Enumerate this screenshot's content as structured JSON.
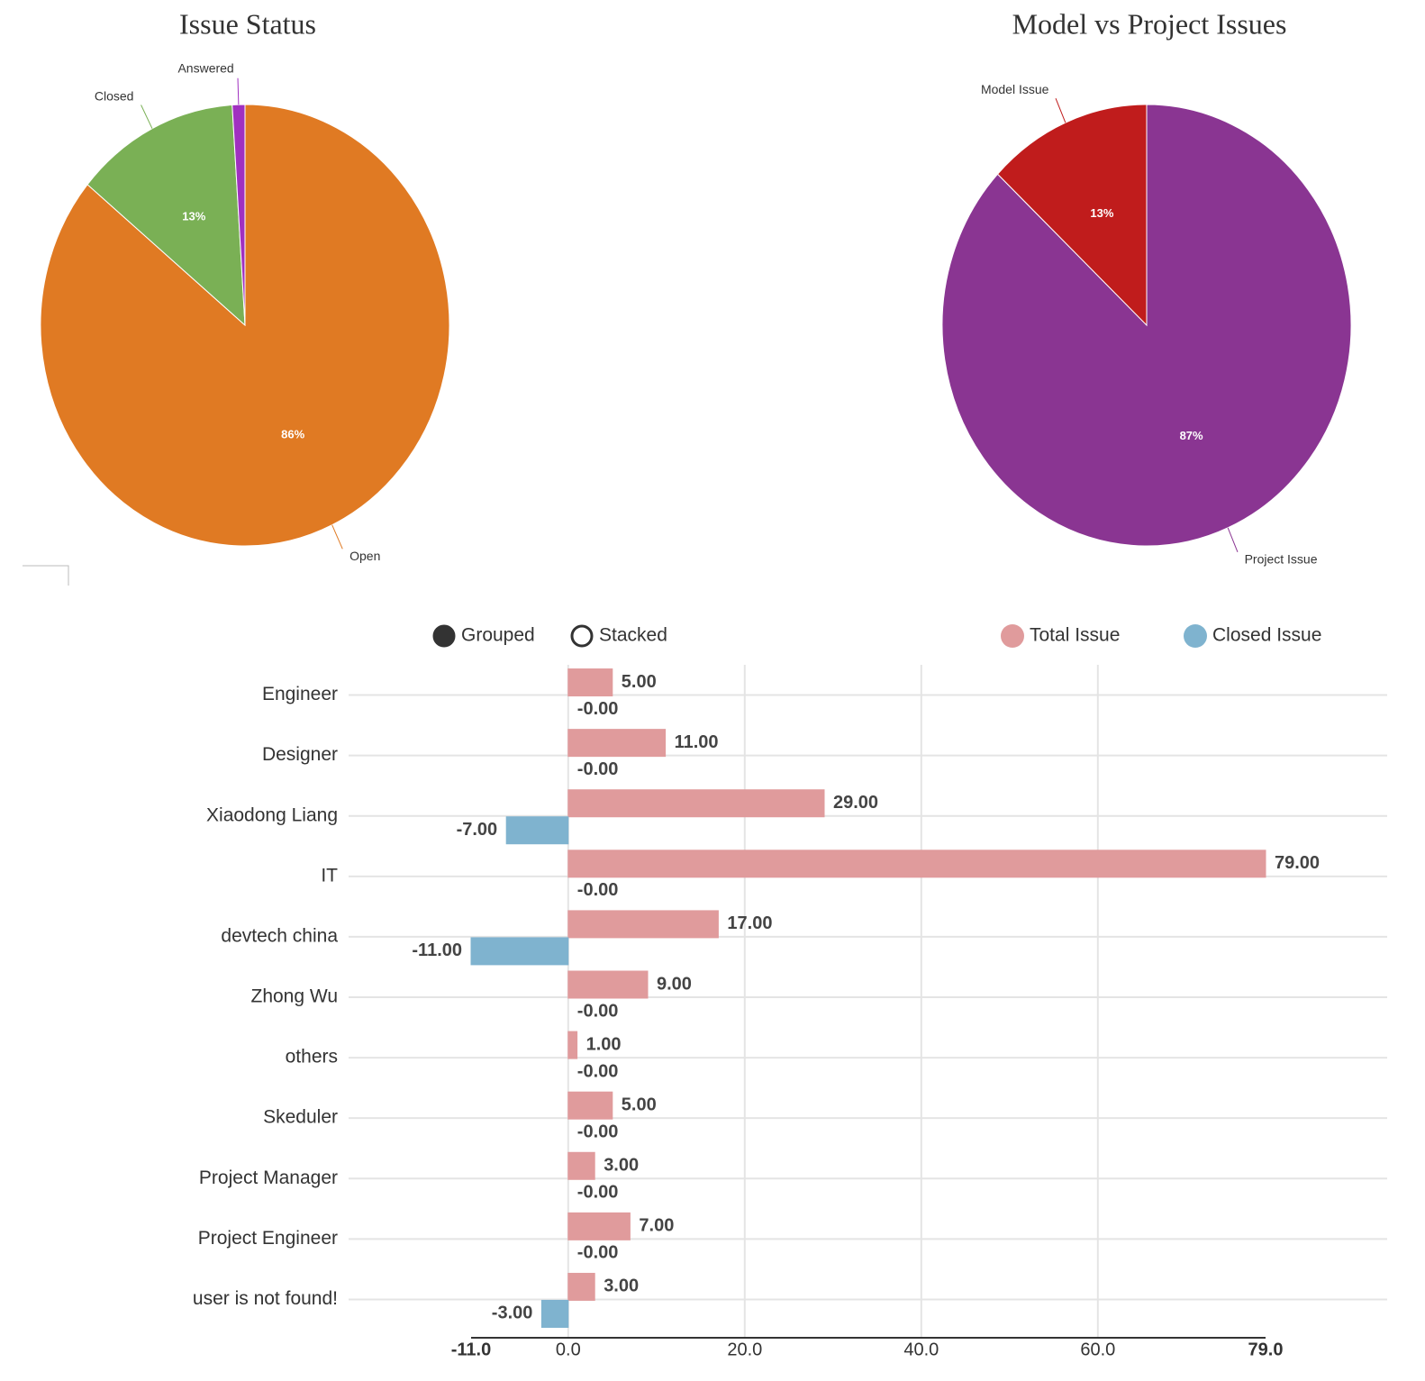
{
  "chart_data": [
    {
      "type": "pie",
      "title": "Issue Status",
      "categories": [
        "Open",
        "Closed",
        "Answered"
      ],
      "values": [
        86,
        13,
        1
      ],
      "value_labels": [
        "86%",
        "13%",
        null
      ],
      "colors": [
        "#e07a23",
        "#7ab055",
        "#a030c0"
      ]
    },
    {
      "type": "pie",
      "title": "Model vs Project Issues",
      "categories": [
        "Project Issue",
        "Model Issue"
      ],
      "values": [
        87,
        13
      ],
      "value_labels": [
        "87%",
        "13%"
      ],
      "colors": [
        "#8a3592",
        "#c01c1c"
      ]
    },
    {
      "type": "bar",
      "orientation": "horizontal",
      "modes": [
        {
          "label": "Grouped",
          "selected": true
        },
        {
          "label": "Stacked",
          "selected": false
        }
      ],
      "categories": [
        "Engineer",
        "Designer",
        "Xiaodong Liang",
        "IT",
        "devtech china",
        "Zhong Wu",
        "others",
        "Skeduler",
        "Project Manager",
        "Project Engineer",
        "user is not found!"
      ],
      "series": [
        {
          "name": "Total Issue",
          "color": "#e09b9c",
          "values": [
            5,
            11,
            29,
            79,
            17,
            9,
            1,
            5,
            3,
            7,
            3
          ],
          "value_labels": [
            "5.00",
            "11.00",
            "29.00",
            "79.00",
            "17.00",
            "9.00",
            "1.00",
            "5.00",
            "3.00",
            "7.00",
            "3.00"
          ]
        },
        {
          "name": "Closed Issue",
          "color": "#7fb3cf",
          "values": [
            0,
            0,
            -7,
            0,
            -11,
            0,
            0,
            0,
            0,
            0,
            -3
          ],
          "value_labels": [
            "-0.00",
            "-0.00",
            "-7.00",
            "-0.00",
            "-11.00",
            "-0.00",
            "-0.00",
            "-0.00",
            "-0.00",
            "-0.00",
            "-3.00"
          ]
        }
      ],
      "xlim": [
        -11,
        79
      ],
      "xticks": [
        {
          "value": -11,
          "label": "-11.0"
        },
        {
          "value": 0,
          "label": "0.0"
        },
        {
          "value": 20,
          "label": "20.0"
        },
        {
          "value": 40,
          "label": "40.0"
        },
        {
          "value": 60,
          "label": "60.0"
        },
        {
          "value": 79,
          "label": "79.0"
        }
      ],
      "grid": true
    }
  ]
}
